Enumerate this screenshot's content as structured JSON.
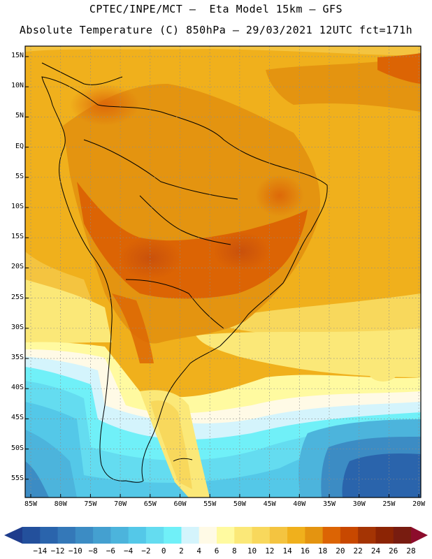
{
  "header": {
    "line1": "CPTEC/INPE/MCT –  Eta Model 15km – GFS",
    "line2": "Absolute Temperature (C) 850hPa – 29/03/2021 12UTC fct=171h"
  },
  "map": {
    "variable": "Absolute Temperature",
    "units": "C",
    "level": "850hPa",
    "lat_labels": [
      "15N",
      "10N",
      "5N",
      "EQ",
      "5S",
      "10S",
      "15S",
      "20S",
      "25S",
      "30S",
      "35S",
      "40S",
      "45S",
      "50S",
      "55S"
    ],
    "lon_labels": [
      "85W",
      "80W",
      "75W",
      "70W",
      "65W",
      "60W",
      "55W",
      "50W",
      "45W",
      "40W",
      "35W",
      "30W",
      "25W",
      "20W"
    ]
  },
  "colorbar": {
    "labels": [
      "-14",
      "-12",
      "-10",
      "-8",
      "-6",
      "-4",
      "-2",
      "0",
      "2",
      "4",
      "6",
      "8",
      "10",
      "12",
      "14",
      "16",
      "18",
      "20",
      "22",
      "24",
      "26",
      "28"
    ],
    "colors": [
      "#1e3c8c",
      "#23509c",
      "#2a64ac",
      "#3478b8",
      "#3c8cc4",
      "#44a0d0",
      "#4cb4dc",
      "#54c8e8",
      "#64dcf0",
      "#70f0f8",
      "#d4f4fc",
      "#fffae6",
      "#fffaa0",
      "#fbe878",
      "#f8d85c",
      "#f4c440",
      "#f0b01c",
      "#e49410",
      "#dc6404",
      "#c84800",
      "#a43404",
      "#8c2404",
      "#781c10",
      "#8c0c2c"
    ],
    "min_color": "#1e3c8c",
    "max_color": "#8c0c2c"
  }
}
